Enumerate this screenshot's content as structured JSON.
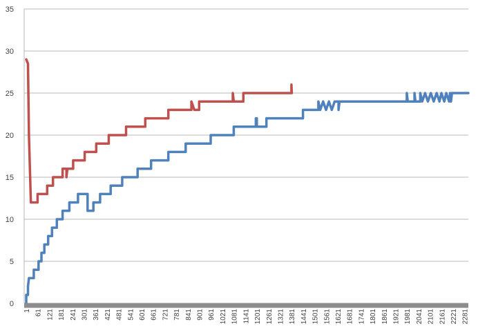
{
  "chart_data": {
    "type": "line",
    "title": "",
    "xlabel": "",
    "ylabel": "",
    "ylim": [
      0,
      35
    ],
    "xlim": [
      1,
      2300
    ],
    "y_ticks": [
      0,
      5,
      10,
      15,
      20,
      25,
      30,
      35
    ],
    "x_tick_labels": [
      "1",
      "61",
      "121",
      "181",
      "241",
      "301",
      "361",
      "421",
      "481",
      "541",
      "601",
      "661",
      "721",
      "781",
      "841",
      "901",
      "961",
      "1021",
      "1081",
      "1141",
      "1201",
      "1261",
      "1321",
      "1381",
      "1441",
      "1501",
      "1561",
      "1621",
      "1681",
      "1741",
      "1801",
      "1861",
      "1921",
      "1981",
      "2041",
      "2101",
      "2161",
      "2221",
      "2281"
    ],
    "grid": true,
    "legend": "none",
    "series": [
      {
        "color": "#4f81bd",
        "points": [
          [
            1,
            0
          ],
          [
            1,
            1
          ],
          [
            10,
            1
          ],
          [
            10,
            2
          ],
          [
            15,
            3
          ],
          [
            40,
            3
          ],
          [
            40,
            4
          ],
          [
            65,
            4
          ],
          [
            65,
            5
          ],
          [
            80,
            5
          ],
          [
            80,
            6
          ],
          [
            95,
            6
          ],
          [
            95,
            7
          ],
          [
            115,
            7
          ],
          [
            115,
            8
          ],
          [
            135,
            8
          ],
          [
            135,
            9
          ],
          [
            160,
            9
          ],
          [
            160,
            10
          ],
          [
            190,
            10
          ],
          [
            190,
            11
          ],
          [
            225,
            11
          ],
          [
            225,
            12
          ],
          [
            270,
            12
          ],
          [
            270,
            13
          ],
          [
            305,
            13
          ],
          [
            320,
            13
          ],
          [
            320,
            11
          ],
          [
            350,
            11
          ],
          [
            350,
            12
          ],
          [
            385,
            12
          ],
          [
            385,
            13
          ],
          [
            440,
            13
          ],
          [
            440,
            14
          ],
          [
            500,
            14
          ],
          [
            500,
            15
          ],
          [
            580,
            15
          ],
          [
            580,
            16
          ],
          [
            650,
            16
          ],
          [
            650,
            17
          ],
          [
            740,
            17
          ],
          [
            740,
            18
          ],
          [
            830,
            18
          ],
          [
            830,
            19
          ],
          [
            960,
            19
          ],
          [
            960,
            20
          ],
          [
            1080,
            20
          ],
          [
            1080,
            21
          ],
          [
            1195,
            21
          ],
          [
            1195,
            22
          ],
          [
            1200,
            22
          ],
          [
            1200,
            21
          ],
          [
            1250,
            21
          ],
          [
            1250,
            22
          ],
          [
            1440,
            22
          ],
          [
            1440,
            23
          ],
          [
            1520,
            23
          ],
          [
            1520,
            24
          ],
          [
            1530,
            23
          ],
          [
            1545,
            24
          ],
          [
            1560,
            23
          ],
          [
            1575,
            24
          ],
          [
            1590,
            23
          ],
          [
            1605,
            24
          ],
          [
            1625,
            24
          ],
          [
            1625,
            23
          ],
          [
            1630,
            24
          ],
          [
            1980,
            24
          ],
          [
            1980,
            25
          ],
          [
            1985,
            24
          ],
          [
            2020,
            24
          ],
          [
            2020,
            25
          ],
          [
            2025,
            24
          ],
          [
            2050,
            24
          ],
          [
            2050,
            25
          ],
          [
            2060,
            24
          ],
          [
            2075,
            25
          ],
          [
            2090,
            24
          ],
          [
            2105,
            25
          ],
          [
            2120,
            24
          ],
          [
            2135,
            25
          ],
          [
            2150,
            24
          ],
          [
            2160,
            25
          ],
          [
            2175,
            24
          ],
          [
            2185,
            25
          ],
          [
            2200,
            24
          ],
          [
            2205,
            25
          ],
          [
            2210,
            24
          ],
          [
            2215,
            25
          ],
          [
            2300,
            25
          ]
        ]
      },
      {
        "color": "#c0504d",
        "points": [
          [
            1,
            29
          ],
          [
            10,
            28.5
          ],
          [
            15,
            20
          ],
          [
            25,
            12
          ],
          [
            60,
            12
          ],
          [
            60,
            13
          ],
          [
            110,
            13
          ],
          [
            110,
            14
          ],
          [
            140,
            14
          ],
          [
            140,
            15
          ],
          [
            190,
            15
          ],
          [
            190,
            16
          ],
          [
            210,
            16
          ],
          [
            210,
            15
          ],
          [
            215,
            16
          ],
          [
            245,
            16
          ],
          [
            245,
            17
          ],
          [
            305,
            17
          ],
          [
            305,
            18
          ],
          [
            365,
            18
          ],
          [
            365,
            19
          ],
          [
            430,
            19
          ],
          [
            430,
            20
          ],
          [
            520,
            20
          ],
          [
            520,
            21
          ],
          [
            620,
            21
          ],
          [
            620,
            22
          ],
          [
            740,
            22
          ],
          [
            740,
            23
          ],
          [
            860,
            23
          ],
          [
            860,
            24
          ],
          [
            875,
            23
          ],
          [
            900,
            23
          ],
          [
            900,
            24
          ],
          [
            1075,
            24
          ],
          [
            1075,
            25
          ],
          [
            1080,
            24
          ],
          [
            1130,
            24
          ],
          [
            1130,
            25
          ],
          [
            1380,
            25
          ],
          [
            1380,
            26
          ],
          [
            1382,
            25
          ]
        ]
      }
    ]
  }
}
